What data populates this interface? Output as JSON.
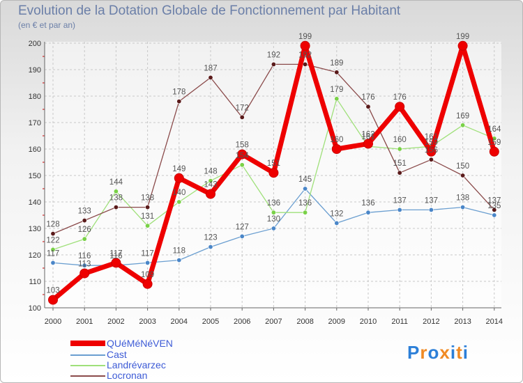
{
  "chart_data": {
    "type": "line",
    "title": "Evolution de la Dotation Globale de Fonctionnement par Habitant",
    "subtitle": "(en € et par an)",
    "categories": [
      "2000",
      "2001",
      "2002",
      "2003",
      "2004",
      "2005",
      "2006",
      "2007",
      "2008",
      "2009",
      "2010",
      "2011",
      "2012",
      "2013",
      "2014"
    ],
    "ylim": [
      100,
      200
    ],
    "yticks": [
      100,
      110,
      120,
      130,
      140,
      150,
      160,
      170,
      180,
      190,
      200
    ],
    "grid": true,
    "legend_position": "bottom-left",
    "series": [
      {
        "name": "Cast",
        "color": "#6a9ed0",
        "marker": "#4a86c8",
        "values": [
          117,
          116,
          116,
          117,
          118,
          123,
          127,
          130,
          145,
          132,
          136,
          137,
          137,
          138,
          135
        ],
        "labels": [
          "117",
          "116",
          "116",
          "117",
          "118",
          "123",
          "127",
          "130",
          "145",
          "132",
          "136",
          "137",
          "137",
          "138",
          "135"
        ]
      },
      {
        "name": "Landrévarzec",
        "color": "#9fe07a",
        "marker": "#79d147",
        "values": [
          122,
          126,
          144,
          131,
          140,
          148,
          154,
          136,
          136,
          179,
          161,
          160,
          161,
          169,
          164
        ],
        "labels": [
          "122",
          "126",
          "144",
          "131",
          "140",
          "148",
          "154",
          "136",
          "136",
          "179",
          "161",
          "160",
          "161",
          "169",
          "164"
        ]
      },
      {
        "name": "Locronan",
        "color": "#8a4a4a",
        "marker": "#5a1a1a",
        "values": [
          128,
          133,
          138,
          138,
          178,
          187,
          172,
          192,
          192,
          189,
          176,
          151,
          156,
          150,
          137
        ],
        "labels": [
          "128",
          "133",
          "138",
          "138",
          "178",
          "187",
          "172",
          "192",
          "192",
          "189",
          "176",
          "151",
          "156",
          "150",
          "137"
        ]
      },
      {
        "name": "QUéMéNéVEN",
        "color": "#ee0000",
        "marker": "#ee0000",
        "values": [
          103,
          113,
          117,
          109,
          149,
          143,
          158,
          151,
          199,
          160,
          162,
          176,
          159,
          199,
          159
        ],
        "labels": [
          "103",
          "113",
          "117",
          "109",
          "149",
          "143",
          "158",
          "151",
          "199",
          "160",
          "162",
          "176",
          "159",
          "199",
          "159"
        ]
      }
    ],
    "legend": [
      {
        "name": "QUéMéNéVEN",
        "color": "#ee0000",
        "thick": true
      },
      {
        "name": "Cast",
        "color": "#6a9ed0",
        "thick": false
      },
      {
        "name": "Landrévarzec",
        "color": "#9fe07a",
        "thick": false
      },
      {
        "name": "Locronan",
        "color": "#8a4a4a",
        "thick": false
      }
    ]
  },
  "logo": {
    "text": "Proxiti",
    "letters": [
      "P",
      "r",
      "o",
      "x",
      "i",
      "t",
      "i"
    ],
    "colors": [
      "#2c7fd8",
      "#f08a24",
      "#2c7fd8",
      "#f08a24",
      "#2c7fd8",
      "#f08a24",
      "#2c7fd8"
    ]
  }
}
